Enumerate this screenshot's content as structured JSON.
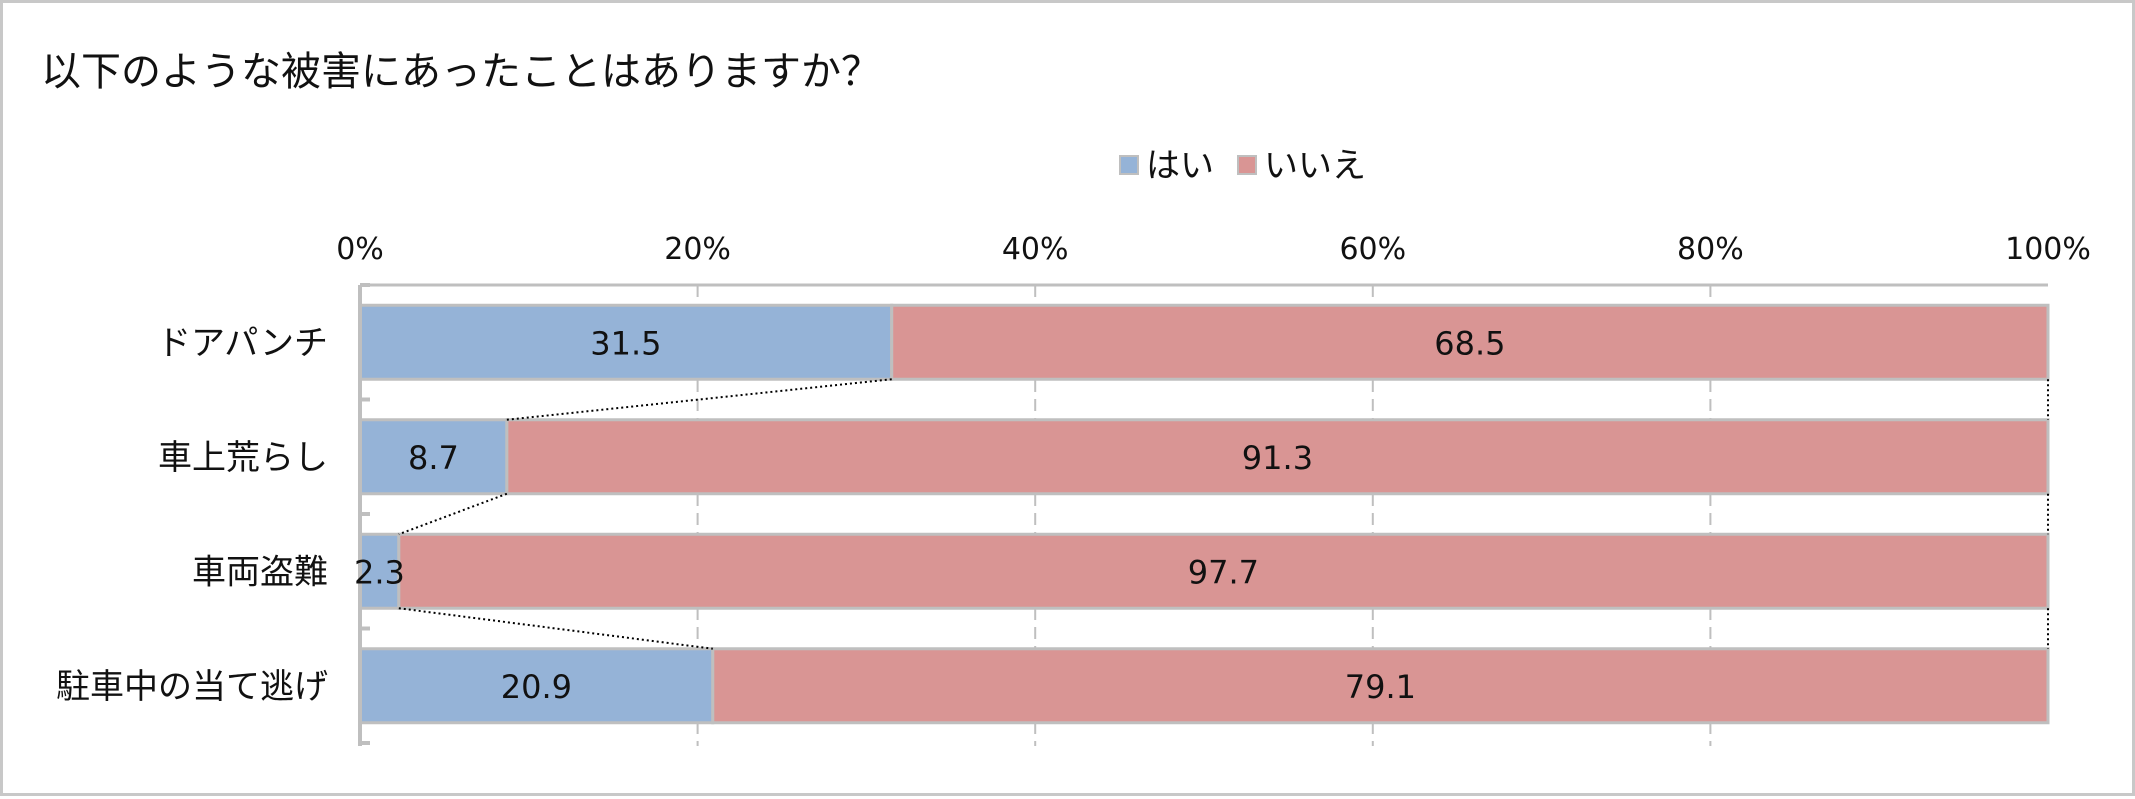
{
  "chart_data": {
    "type": "bar",
    "orientation": "horizontal",
    "stacked": "percent",
    "title": "以下のような被害にあったことはありますか？",
    "categories": [
      "ドアパンチ",
      "車上荒らし",
      "車両盗難",
      "駐車中の当て逃げ"
    ],
    "series": [
      {
        "name": "はい",
        "color": "#95b3d7",
        "values": [
          31.5,
          8.7,
          2.3,
          20.9
        ]
      },
      {
        "name": "いいえ",
        "color": "#d99594",
        "values": [
          68.5,
          91.3,
          97.7,
          79.1
        ]
      }
    ],
    "xlim": [
      0,
      100
    ],
    "x_ticks": [
      "0%",
      "20%",
      "40%",
      "60%",
      "80%",
      "100%"
    ],
    "grid": true,
    "series_lines": true,
    "legend": "top-center",
    "value_labels": true
  }
}
